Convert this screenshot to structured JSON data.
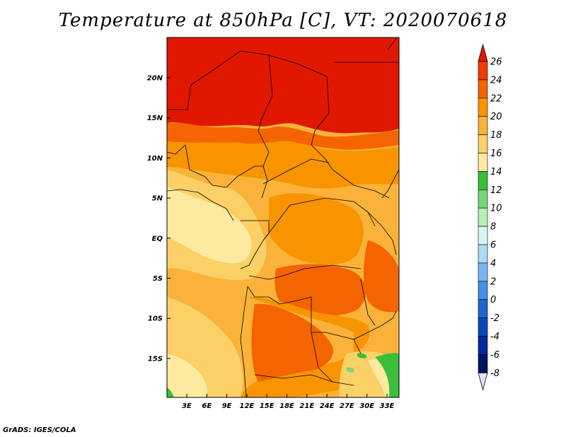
{
  "title": "Temperature at 850hPa [C], VT: 2020070618",
  "footer": "GrADS: IGES/COLA",
  "lat_labels": [
    "20N",
    "15N",
    "10N",
    "5N",
    "EQ",
    "5S",
    "10S",
    "15S"
  ],
  "lon_labels": [
    "3E",
    "6E",
    "9E",
    "12E",
    "15E",
    "18E",
    "21E",
    "24E",
    "27E",
    "30E",
    "33E"
  ],
  "colorbar": {
    "labels": [
      "26",
      "24",
      "22",
      "20",
      "18",
      "16",
      "14",
      "12",
      "10",
      "8",
      "6",
      "4",
      "2",
      "0",
      "-2",
      "-4",
      "-6",
      "-8"
    ],
    "colors": [
      "#e11800",
      "#f03c00",
      "#f46400",
      "#f89400",
      "#fab23a",
      "#fad067",
      "#fdeaa0",
      "#3cbe3c",
      "#78d678",
      "#b4f0b4",
      "#daf4f4",
      "#aadcf4",
      "#78b4f0",
      "#4690e8",
      "#1e64d2",
      "#0a46be",
      "#0028a0",
      "#001464",
      "#e0e0f8"
    ]
  }
}
